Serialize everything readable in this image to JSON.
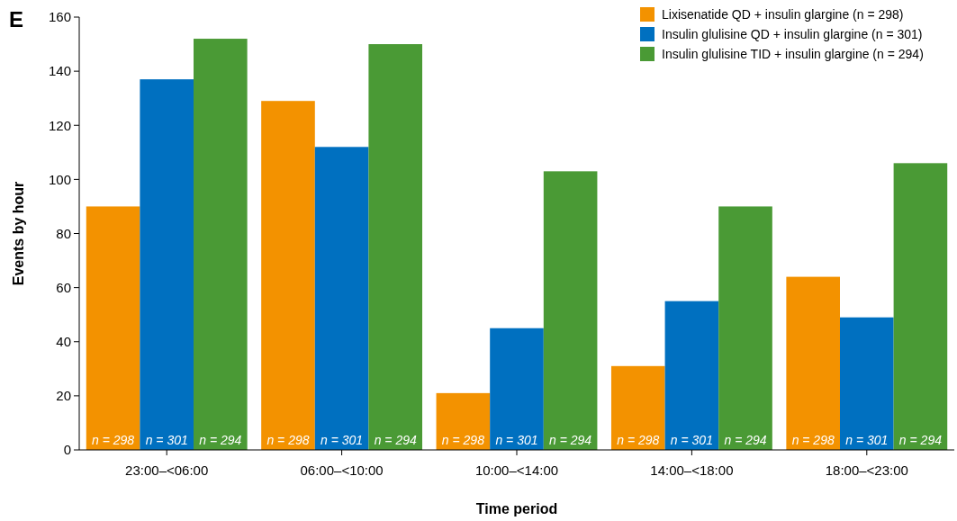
{
  "chart_data": {
    "type": "bar",
    "xlabel": "Time period",
    "ylabel": "Events by hour",
    "categories": [
      "23:00–<06:00",
      "06:00–<10:00",
      "10:00–<14:00",
      "14:00–<18:00",
      "18:00–<23:00"
    ],
    "series": [
      {
        "name": "Lixisenatide QD + insulin glargine (n = 298)",
        "color": "#f39200",
        "values": [
          90,
          129,
          21,
          31,
          64
        ]
      },
      {
        "name": "Insulin glulisine QD + insulin glargine (n = 301)",
        "color": "#0070c0",
        "values": [
          137,
          112,
          45,
          55,
          49
        ]
      },
      {
        "name": "Insulin glulisine TID + insulin glargine (n = 294)",
        "color": "#4a9a35",
        "values": [
          152,
          150,
          103,
          90,
          106
        ]
      }
    ],
    "ylim": [
      0,
      160
    ],
    "yticks": [
      0,
      20,
      40,
      60,
      80,
      100,
      120,
      140,
      160
    ],
    "grid": false,
    "legend": "top right",
    "annotations": [
      "E",
      {
        "text": "n = 298",
        "x": "23:00–<06:00",
        "y": 0
      },
      {
        "text": "n = 301",
        "x": "23:00–<06:00",
        "y": 0
      },
      {
        "text": "n = 294",
        "x": "23:00–<06:00",
        "y": 0
      },
      {
        "text": "n = 298",
        "x": "06:00–<10:00",
        "y": 0
      },
      {
        "text": "n = 301",
        "x": "06:00–<10:00",
        "y": 0
      },
      {
        "text": "n = 294",
        "x": "06:00–<10:00",
        "y": 0
      },
      {
        "text": "n = 298",
        "x": "10:00–<14:00",
        "y": 0
      },
      {
        "text": "n = 301",
        "x": "10:00–<14:00",
        "y": 0
      },
      {
        "text": "n = 294",
        "x": "10:00–<14:00",
        "y": 0
      },
      {
        "text": "n = 298",
        "x": "14:00–<18:00",
        "y": 0
      },
      {
        "text": "n = 301",
        "x": "14:00–<18:00",
        "y": 0
      },
      {
        "text": "n = 294",
        "x": "14:00–<18:00",
        "y": 0
      },
      {
        "text": "n = 298",
        "x": "18:00–<23:00",
        "y": 0
      },
      {
        "text": "n = 301",
        "x": "18:00–<23:00",
        "y": 0
      },
      {
        "text": "n = 294",
        "x": "18:00–<23:00",
        "y": 0
      }
    ]
  }
}
